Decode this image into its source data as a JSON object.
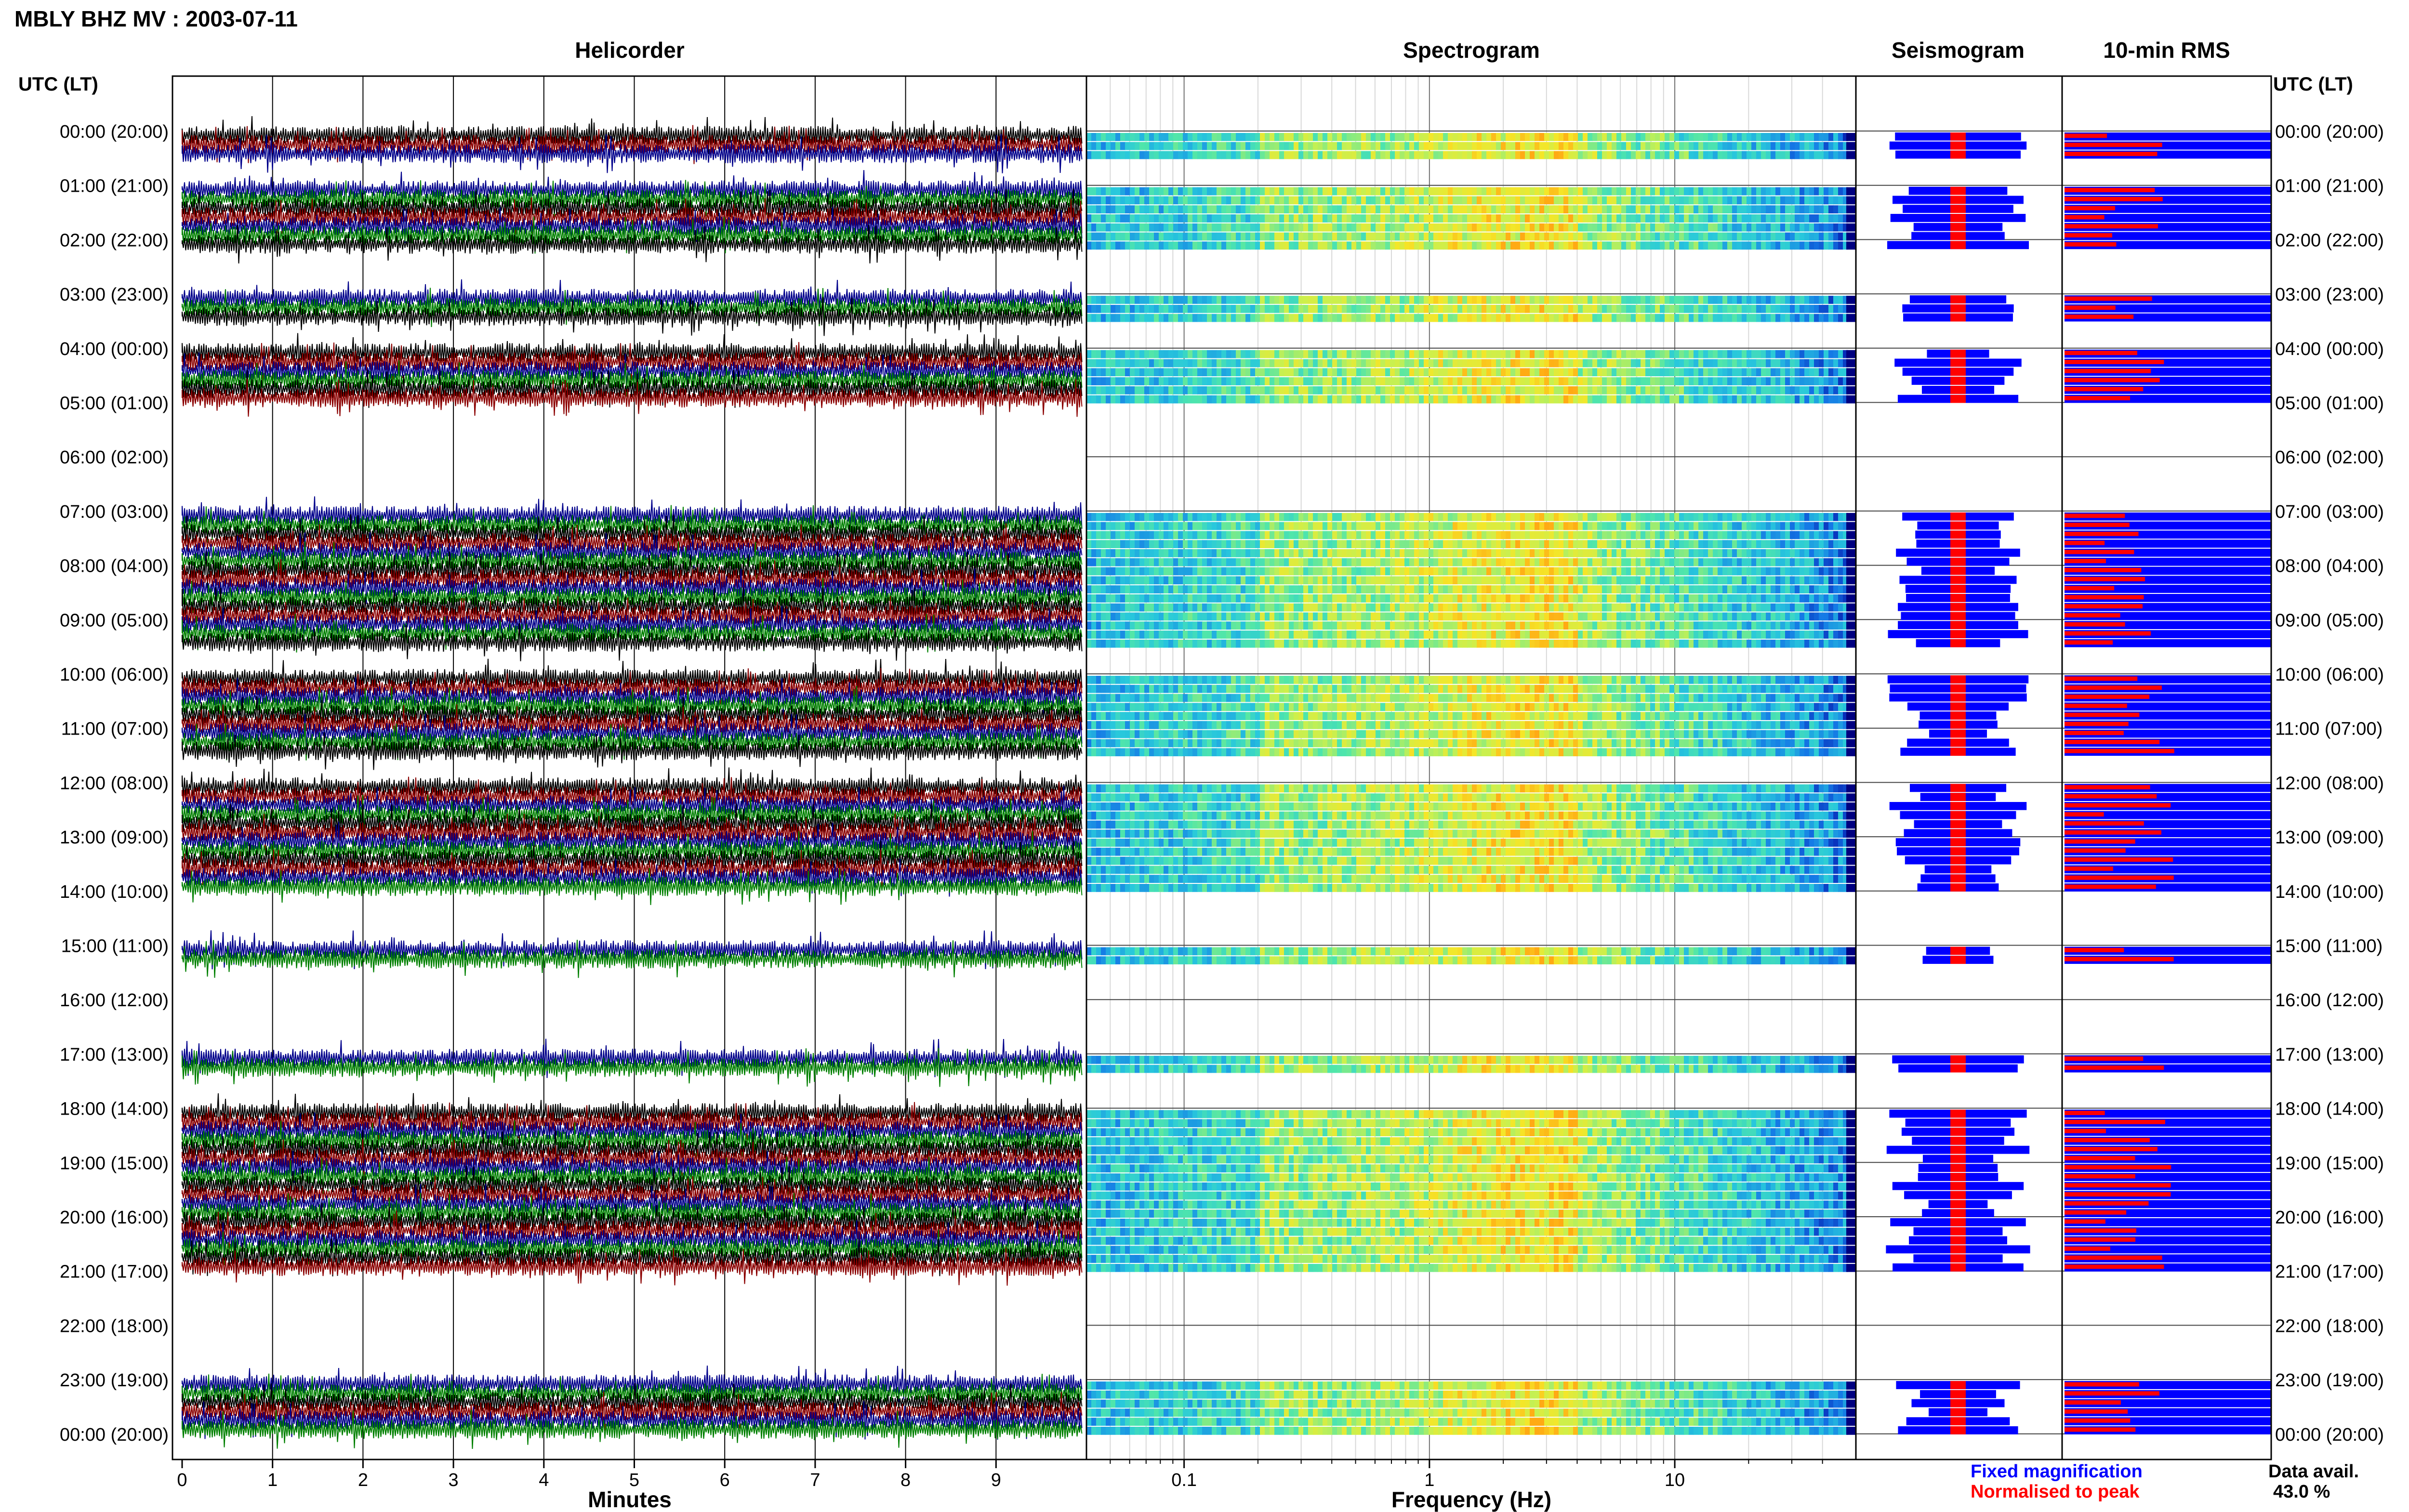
{
  "chart_data": {
    "type": "heatmap",
    "title": "MBLY BHZ MV : 2003-07-11",
    "panels": {
      "helicorder": "Helicorder",
      "spectrogram": "Spectrogram",
      "seismogram": "Seismogram",
      "rms": "10-min RMS"
    },
    "time_axis_header": "UTC (LT)",
    "hour_labels": [
      "00:00 (20:00)",
      "01:00 (21:00)",
      "02:00 (22:00)",
      "03:00 (23:00)",
      "04:00 (00:00)",
      "05:00 (01:00)",
      "06:00 (02:00)",
      "07:00 (03:00)",
      "08:00 (04:00)",
      "09:00 (05:00)",
      "10:00 (06:00)",
      "11:00 (07:00)",
      "12:00 (08:00)",
      "13:00 (09:00)",
      "14:00 (10:00)",
      "15:00 (11:00)",
      "16:00 (12:00)",
      "17:00 (13:00)",
      "18:00 (14:00)",
      "19:00 (15:00)",
      "20:00 (16:00)",
      "21:00 (17:00)",
      "22:00 (18:00)",
      "23:00 (19:00)",
      "00:00 (20:00)"
    ],
    "helicorder_xlabel": "Minutes",
    "helicorder_xticks": [
      "0",
      "1",
      "2",
      "3",
      "4",
      "5",
      "6",
      "7",
      "8",
      "9"
    ],
    "helicorder_xlim": [
      0,
      10
    ],
    "spectrogram_xlabel": "Frequency (Hz)",
    "spectrogram_xticks": [
      "0.1",
      "1",
      "10"
    ],
    "spectrogram_xscale": "log",
    "data_hours": [
      {
        "hour": 0,
        "lines": [
          0,
          1,
          2
        ]
      },
      {
        "hour": 1,
        "lines": [
          0,
          1,
          2,
          3,
          4,
          5
        ]
      },
      {
        "hour": 2,
        "lines": [
          0
        ]
      },
      {
        "hour": 3,
        "lines": [
          0,
          1,
          2
        ]
      },
      {
        "hour": 4,
        "lines": [
          0,
          1,
          2,
          3,
          4,
          5
        ]
      },
      {
        "hour": 7,
        "lines": [
          0,
          1,
          2,
          3,
          4,
          5
        ]
      },
      {
        "hour": 8,
        "lines": [
          0,
          1,
          2,
          3,
          4,
          5
        ]
      },
      {
        "hour": 9,
        "lines": [
          0,
          1,
          2
        ]
      },
      {
        "hour": 10,
        "lines": [
          0,
          1,
          2,
          3,
          4,
          5
        ]
      },
      {
        "hour": 11,
        "lines": [
          0,
          1,
          2
        ]
      },
      {
        "hour": 12,
        "lines": [
          0,
          1,
          2,
          3,
          4,
          5
        ]
      },
      {
        "hour": 13,
        "lines": [
          0,
          1,
          2,
          3,
          4,
          5
        ]
      },
      {
        "hour": 15,
        "lines": [
          0,
          1
        ]
      },
      {
        "hour": 17,
        "lines": [
          0,
          1
        ]
      },
      {
        "hour": 18,
        "lines": [
          0,
          1,
          2,
          3,
          4,
          5
        ]
      },
      {
        "hour": 19,
        "lines": [
          0,
          1,
          2,
          3,
          4,
          5
        ]
      },
      {
        "hour": 20,
        "lines": [
          0,
          1,
          2,
          3,
          4,
          5
        ]
      },
      {
        "hour": 23,
        "lines": [
          0,
          1,
          2,
          3,
          4,
          5
        ]
      }
    ],
    "trace_colors": [
      "#000000",
      "#8b0000",
      "#00008b",
      "#008000"
    ],
    "legend": [
      {
        "label": "Fixed magnification",
        "color": "#0000ff"
      },
      {
        "label": "Normalised to peak",
        "color": "#ff0000"
      }
    ],
    "data_availability_label": "Data avail.",
    "data_availability_value": "43.0 %"
  }
}
